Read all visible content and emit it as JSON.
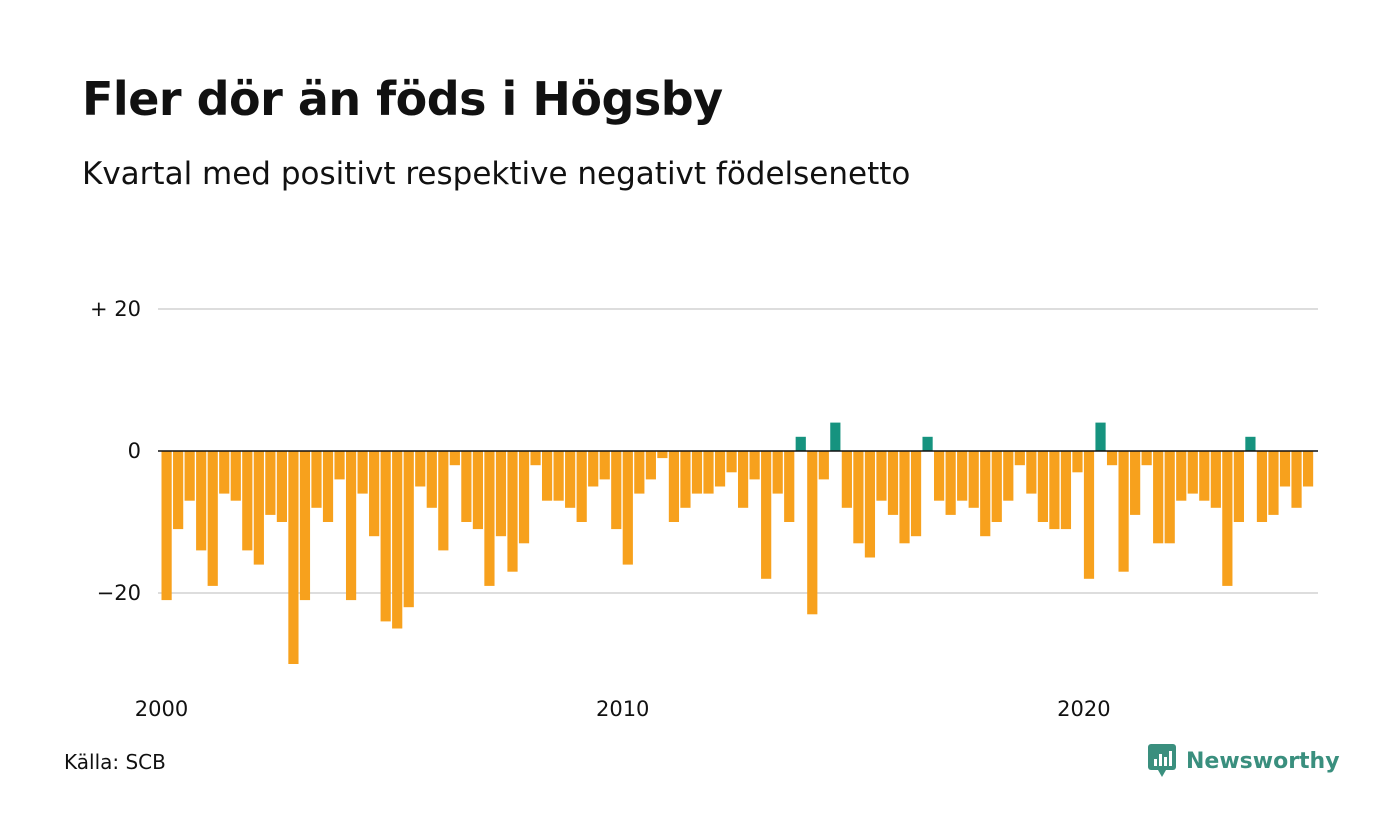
{
  "title": "Fler dör än föds i Högsby",
  "subtitle": "Kvartal med positivt respektive negativt födelsenetto",
  "source": "Källa: SCB",
  "brand": {
    "name": "Newsworthy",
    "icon": "newsworthy-logo-icon"
  },
  "colors": {
    "negative": "#f7a11d",
    "positive": "#16937f",
    "grid": "#dddddd",
    "baseline": "#111111"
  },
  "chart_data": {
    "type": "bar",
    "x_start": "2000 Q1",
    "frequency": "quarterly",
    "xlabel": "",
    "ylabel": "",
    "ylim": [
      -30,
      20
    ],
    "y_ticks": [
      {
        "value": 20,
        "label": "+ 20"
      },
      {
        "value": 0,
        "label": "0"
      },
      {
        "value": -20,
        "label": "−20"
      }
    ],
    "x_ticks": [
      {
        "index": 0,
        "label": "2000"
      },
      {
        "index": 40,
        "label": "2010"
      },
      {
        "index": 80,
        "label": "2020"
      }
    ],
    "grid": true,
    "values": [
      -21,
      -11,
      -7,
      -14,
      -19,
      -6,
      -7,
      -14,
      -16,
      -9,
      -10,
      -30,
      -21,
      -8,
      -10,
      -4,
      -21,
      -6,
      -12,
      -24,
      -25,
      -22,
      -5,
      -8,
      -14,
      -2,
      -10,
      -11,
      -19,
      -12,
      -17,
      -13,
      -2,
      -7,
      -7,
      -8,
      -10,
      -5,
      -4,
      -11,
      -16,
      -6,
      -4,
      -1,
      -10,
      -8,
      -6,
      -6,
      -5,
      -3,
      -8,
      -4,
      -18,
      -6,
      -10,
      2,
      -23,
      -4,
      4,
      -8,
      -13,
      -15,
      -7,
      -9,
      -13,
      -12,
      2,
      -7,
      -9,
      -7,
      -8,
      -12,
      -10,
      -7,
      -2,
      -6,
      -10,
      -11,
      -11,
      -3,
      -18,
      4,
      -2,
      -17,
      -9,
      -2,
      -13,
      -13,
      -7,
      -6,
      -7,
      -8,
      -19,
      -10,
      2,
      -10,
      -9,
      -5,
      -8,
      -5
    ]
  }
}
